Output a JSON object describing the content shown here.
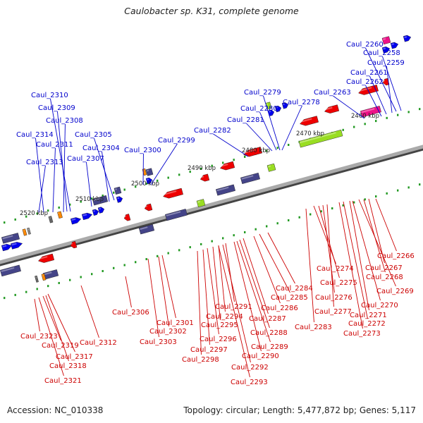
{
  "title": "Caulobacter sp. K31, complete genome",
  "footer": {
    "accession": "Accession: NC_010338",
    "summary": "Topology: circular; Length: 5,477,872 bp; Genes: 5,117"
  },
  "colors": {
    "forward_label": "#0000cc",
    "reverse_label": "#cc0000",
    "backbone": "#777777",
    "forward_gene": "#0000ee",
    "reverse_gene": "#ee0000",
    "purple_gene": "#444488",
    "green_gene": "#99dd22",
    "magenta_gene": "#ee1188",
    "orange_gene": "#ff8800",
    "tick": "#229922"
  },
  "scale_labels": [
    {
      "text": "2520 kbp"
    },
    {
      "text": "2510 kbp"
    },
    {
      "text": "2500 kbp"
    },
    {
      "text": "2490 kbp"
    },
    {
      "text": "2480 kbp"
    },
    {
      "text": "2470 kbp"
    },
    {
      "text": "2460 kbp"
    }
  ],
  "forward_genes": [
    {
      "name": "Caul_2260"
    },
    {
      "name": "Caul_2258"
    },
    {
      "name": "Caul_2259"
    },
    {
      "name": "Caul_2261"
    },
    {
      "name": "Caul_2262"
    },
    {
      "name": "Caul_2263"
    },
    {
      "name": "Caul_2278"
    },
    {
      "name": "Caul_2279"
    },
    {
      "name": "Caul_2280"
    },
    {
      "name": "Caul_2281"
    },
    {
      "name": "Caul_2282"
    },
    {
      "name": "Caul_2299"
    },
    {
      "name": "Caul_2300"
    },
    {
      "name": "Caul_2305"
    },
    {
      "name": "Caul_2304"
    },
    {
      "name": "Caul_2307"
    },
    {
      "name": "Caul_2310"
    },
    {
      "name": "Caul_2309"
    },
    {
      "name": "Caul_2308"
    },
    {
      "name": "Caul_2314"
    },
    {
      "name": "Caul_2311"
    },
    {
      "name": "Caul_2313"
    }
  ],
  "reverse_genes": [
    {
      "name": "Caul_2266"
    },
    {
      "name": "Caul_2267"
    },
    {
      "name": "Caul_2268"
    },
    {
      "name": "Caul_2269"
    },
    {
      "name": "Caul_2270"
    },
    {
      "name": "Caul_2271"
    },
    {
      "name": "Caul_2272"
    },
    {
      "name": "Caul_2273"
    },
    {
      "name": "Caul_2274"
    },
    {
      "name": "Caul_2275"
    },
    {
      "name": "Caul_2276"
    },
    {
      "name": "Caul_2277"
    },
    {
      "name": "Caul_2283"
    },
    {
      "name": "Caul_2284"
    },
    {
      "name": "Caul_2285"
    },
    {
      "name": "Caul_2286"
    },
    {
      "name": "Caul_2287"
    },
    {
      "name": "Caul_2288"
    },
    {
      "name": "Caul_2289"
    },
    {
      "name": "Caul_2290"
    },
    {
      "name": "Caul_2291"
    },
    {
      "name": "Caul_2294"
    },
    {
      "name": "Caul_2295"
    },
    {
      "name": "Caul_2296"
    },
    {
      "name": "Caul_2297"
    },
    {
      "name": "Caul_2298"
    },
    {
      "name": "Caul_2292"
    },
    {
      "name": "Caul_2293"
    },
    {
      "name": "Caul_2301"
    },
    {
      "name": "Caul_2302"
    },
    {
      "name": "Caul_2303"
    },
    {
      "name": "Caul_2306"
    },
    {
      "name": "Caul_2312"
    },
    {
      "name": "Caul_2317"
    },
    {
      "name": "Caul_2318"
    },
    {
      "name": "Caul_2319"
    },
    {
      "name": "Caul_2321"
    },
    {
      "name": "Caul_2323"
    }
  ]
}
